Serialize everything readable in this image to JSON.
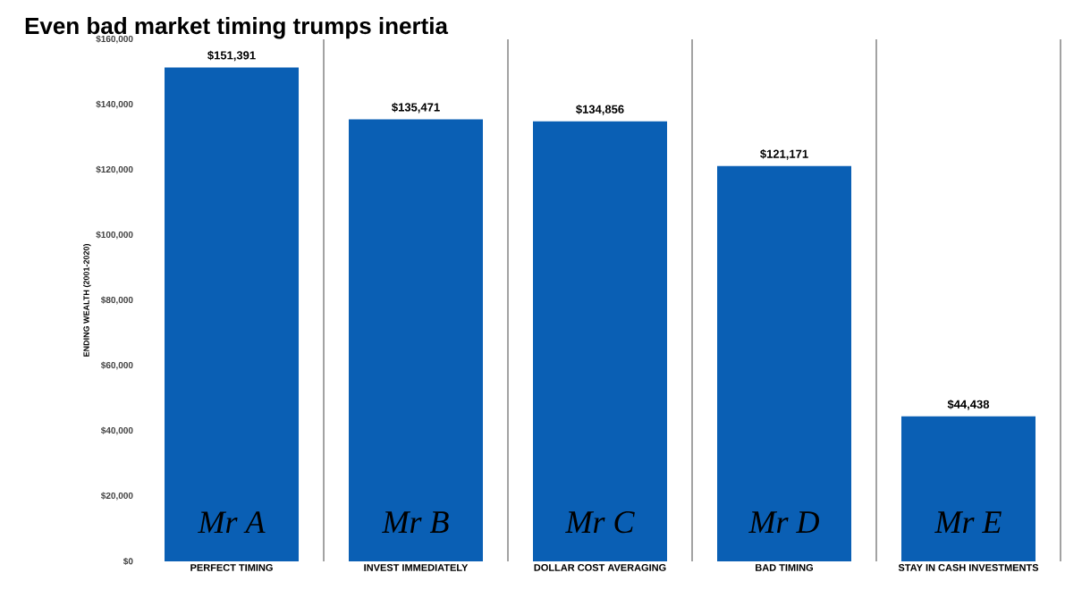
{
  "chart_data": {
    "type": "bar",
    "title": "Even bad market timing trumps inertia",
    "ylabel": "ENDING WEALTH (2001-2020)",
    "categories": [
      "PERFECT TIMING",
      "INVEST IMMEDIATELY",
      "DOLLAR COST AVERAGING",
      "BAD TIMING",
      "STAY IN CASH INVESTMENTS"
    ],
    "values": [
      151391,
      135471,
      134856,
      121171,
      44438
    ],
    "value_labels": [
      "$151,391",
      "$135,471",
      "$134,856",
      "$121,171",
      "$44,438"
    ],
    "color": "#0a5fb4",
    "ylim": [
      0,
      160000
    ],
    "yticks": [
      {
        "value": 0,
        "label": "$0"
      },
      {
        "value": 20000,
        "label": "$20,000"
      },
      {
        "value": 40000,
        "label": "$40,000"
      },
      {
        "value": 60000,
        "label": "$60,000"
      },
      {
        "value": 80000,
        "label": "$80,000"
      },
      {
        "value": 100000,
        "label": "$100,000"
      },
      {
        "value": 120000,
        "label": "$120,000"
      },
      {
        "value": 140000,
        "label": "$140,000"
      },
      {
        "value": 160000,
        "label": "$160,000"
      }
    ],
    "grid": "x",
    "annotations": [
      "Mr A",
      "Mr B",
      "Mr C",
      "Mr D",
      "Mr E"
    ]
  }
}
